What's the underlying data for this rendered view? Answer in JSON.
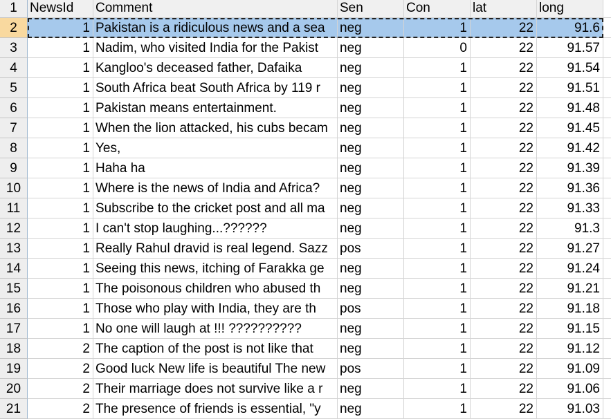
{
  "sheet": {
    "column_headers": {
      "row_label": "1",
      "cols": [
        "NewsId",
        "Comment",
        "Sen",
        "Con",
        "lat",
        "long"
      ]
    },
    "selected_row": "2",
    "rows": [
      {
        "n": "2",
        "id": "1",
        "comment": "Pakistan is a ridiculous news and a sea",
        "sen": "neg",
        "con": "1",
        "lat": "22",
        "long": "91.6"
      },
      {
        "n": "3",
        "id": "1",
        "comment": "Nadim, who visited India for the Pakist",
        "sen": "neg",
        "con": "0",
        "lat": "22",
        "long": "91.57"
      },
      {
        "n": "4",
        "id": "1",
        "comment": "Kangloo's deceased father, Dafaika",
        "sen": "neg",
        "con": "1",
        "lat": "22",
        "long": "91.54"
      },
      {
        "n": "5",
        "id": "1",
        "comment": "South Africa beat South Africa by 119 r",
        "sen": "neg",
        "con": "1",
        "lat": "22",
        "long": "91.51"
      },
      {
        "n": "6",
        "id": "1",
        "comment": "Pakistan means entertainment.",
        "sen": "neg",
        "con": "1",
        "lat": "22",
        "long": "91.48"
      },
      {
        "n": "7",
        "id": "1",
        "comment": "When the lion attacked, his cubs becam",
        "sen": "neg",
        "con": "1",
        "lat": "22",
        "long": "91.45"
      },
      {
        "n": "8",
        "id": "1",
        "comment": "Yes,",
        "sen": "neg",
        "con": "1",
        "lat": "22",
        "long": "91.42"
      },
      {
        "n": "9",
        "id": "1",
        "comment": "Haha ha",
        "sen": "neg",
        "con": "1",
        "lat": "22",
        "long": "91.39"
      },
      {
        "n": "10",
        "id": "1",
        "comment": "Where is the news of India and Africa?",
        "sen": "neg",
        "con": "1",
        "lat": "22",
        "long": "91.36"
      },
      {
        "n": "11",
        "id": "1",
        "comment": "Subscribe to the cricket post and all ma",
        "sen": "neg",
        "con": "1",
        "lat": "22",
        "long": "91.33"
      },
      {
        "n": "12",
        "id": "1",
        "comment": "I can't stop laughing...??????",
        "sen": "neg",
        "con": "1",
        "lat": "22",
        "long": "91.3"
      },
      {
        "n": "13",
        "id": "1",
        "comment": "Really Rahul dravid is real legend. Sazz",
        "sen": "pos",
        "con": "1",
        "lat": "22",
        "long": "91.27"
      },
      {
        "n": "14",
        "id": "1",
        "comment": "Seeing this news, itching of Farakka ge",
        "sen": "neg",
        "con": "1",
        "lat": "22",
        "long": "91.24"
      },
      {
        "n": "15",
        "id": "1",
        "comment": "The poisonous children who abused th",
        "sen": "neg",
        "con": "1",
        "lat": "22",
        "long": "91.21"
      },
      {
        "n": "16",
        "id": "1",
        "comment": "Those who play with India, they are th",
        "sen": "pos",
        "con": "1",
        "lat": "22",
        "long": "91.18"
      },
      {
        "n": "17",
        "id": "1",
        "comment": "No one will laugh at !!! ??????????",
        "sen": "neg",
        "con": "1",
        "lat": "22",
        "long": "91.15"
      },
      {
        "n": "18",
        "id": "2",
        "comment": "The caption of the post is not like that",
        "sen": "neg",
        "con": "1",
        "lat": "22",
        "long": "91.12"
      },
      {
        "n": "19",
        "id": "2",
        "comment": "Good luck New life is beautiful The new",
        "sen": "pos",
        "con": "1",
        "lat": "22",
        "long": "91.09"
      },
      {
        "n": "20",
        "id": "2",
        "comment": "Their marriage does not survive like a r",
        "sen": "neg",
        "con": "1",
        "lat": "22",
        "long": "91.06"
      },
      {
        "n": "21",
        "id": "2",
        "comment": "The presence of friends is essential, \"y",
        "sen": "neg",
        "con": "1",
        "lat": "22",
        "long": "91.03"
      }
    ]
  }
}
